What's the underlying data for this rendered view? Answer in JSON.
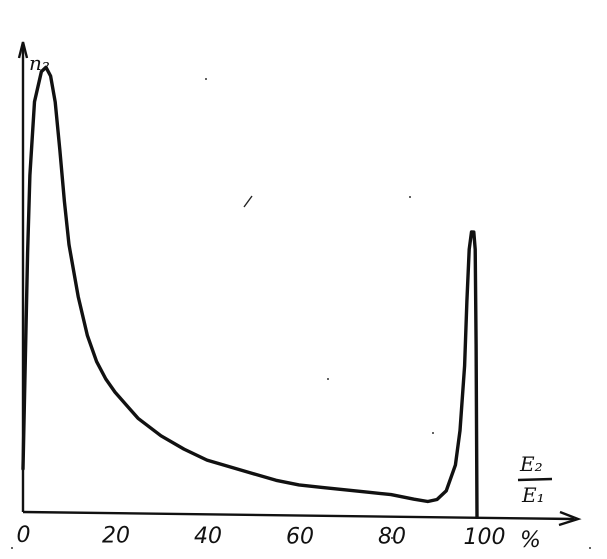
{
  "chart_data": {
    "type": "line",
    "title": "",
    "ylabel": "n₂",
    "xlabel": {
      "numerator": "E₂",
      "denominator": "E₁"
    },
    "x_unit": "%",
    "xlim": [
      0,
      110
    ],
    "ylim": [
      0,
      100
    ],
    "grid": false,
    "x_ticks": [
      "0",
      "20",
      "40",
      "60",
      "80",
      "100"
    ],
    "x_tick_values": [
      0,
      20,
      40,
      60,
      80,
      100
    ],
    "series": [
      {
        "values": [
          [
            0,
            10
          ],
          [
            0.5,
            35
          ],
          [
            1,
            60
          ],
          [
            1.5,
            78
          ],
          [
            2.5,
            95
          ],
          [
            4,
            102
          ],
          [
            5,
            103
          ],
          [
            6,
            101
          ],
          [
            7,
            95
          ],
          [
            8,
            84
          ],
          [
            9,
            72
          ],
          [
            10,
            62
          ],
          [
            12,
            50
          ],
          [
            14,
            41
          ],
          [
            16,
            35
          ],
          [
            18,
            31
          ],
          [
            20,
            28
          ],
          [
            25,
            22
          ],
          [
            30,
            18
          ],
          [
            35,
            15
          ],
          [
            40,
            12.5
          ],
          [
            45,
            11
          ],
          [
            50,
            9.5
          ],
          [
            55,
            8
          ],
          [
            60,
            7
          ],
          [
            65,
            6.5
          ],
          [
            70,
            6
          ],
          [
            75,
            5.5
          ],
          [
            80,
            5
          ],
          [
            85,
            4
          ],
          [
            88,
            3.5
          ],
          [
            90,
            4
          ],
          [
            92,
            6
          ],
          [
            94,
            12
          ],
          [
            95,
            20
          ],
          [
            96,
            35
          ],
          [
            96.5,
            50
          ],
          [
            97,
            62
          ],
          [
            97.5,
            66
          ],
          [
            98,
            66
          ],
          [
            98.3,
            62
          ],
          [
            98.5,
            40
          ],
          [
            98.7,
            0
          ]
        ]
      }
    ]
  }
}
